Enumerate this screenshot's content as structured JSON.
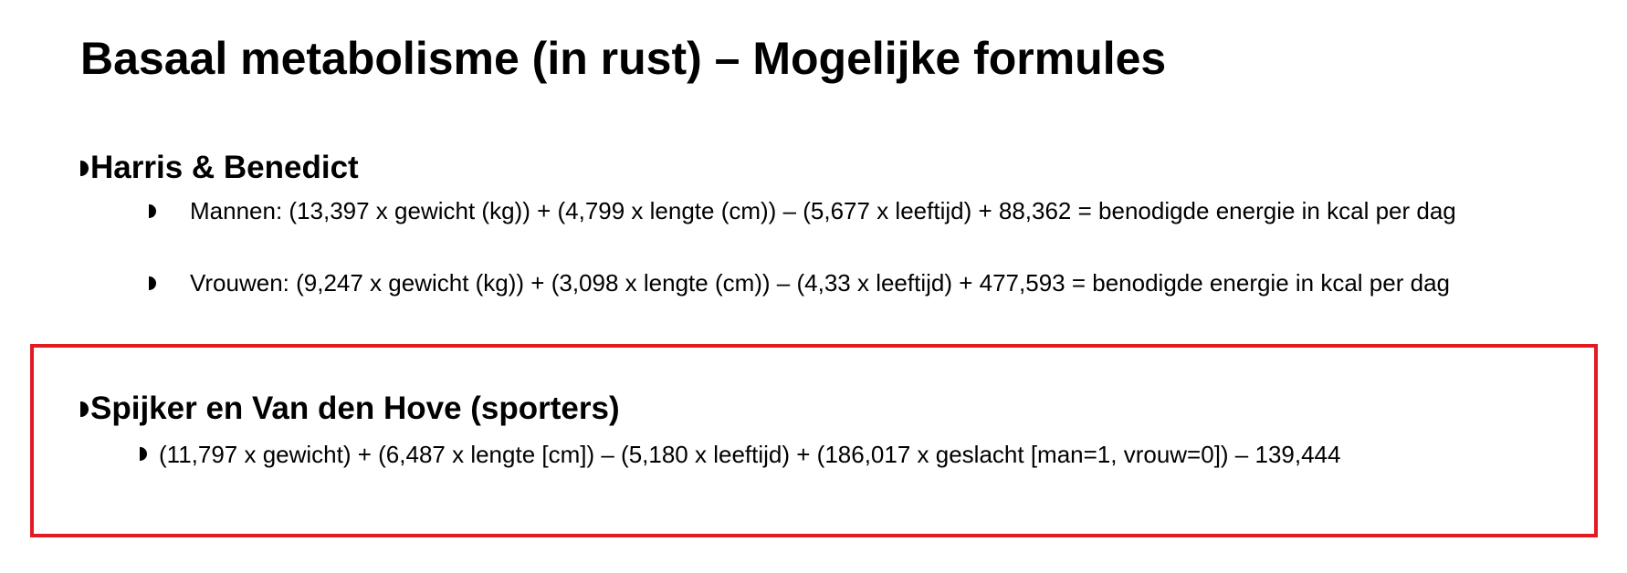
{
  "title": "Basaal metabolisme (in rust) – Mogelijke formules",
  "sections": [
    {
      "heading": "Harris & Benedict",
      "formulas": [
        "Mannen: (13,397 x gewicht (kg)) + (4,799 x lengte (cm)) – (5,677 x leeftijd) + 88,362 = benodigde energie in kcal per dag",
        "Vrouwen: (9,247 x gewicht (kg)) + (3,098 x lengte (cm)) – (4,33 x leeftijd) + 477,593 = benodigde energie in kcal per dag"
      ]
    },
    {
      "heading": "Spijker en Van den Hove (sporters)",
      "formulas": [
        "(11,797 x gewicht) + (6,487 x lengte [cm]) – (5,180 x leeftijd) + (186,017 x geslacht [man=1, vrouw=0]) – 139,444"
      ]
    }
  ],
  "highlight_color": "#e11b22"
}
